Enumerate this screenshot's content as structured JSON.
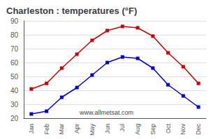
{
  "chart_data": {
    "type": "line",
    "title": "Charleston : temperatures (°F)",
    "categories": [
      "Jan",
      "Feb",
      "Mar",
      "Apr",
      "May",
      "Jun",
      "Jul",
      "Aug",
      "Sep",
      "Oct",
      "Nov",
      "Dec"
    ],
    "series": [
      {
        "color": "#cc0000",
        "values": [
          41,
          45,
          56,
          66,
          76,
          83,
          86,
          85,
          79,
          67,
          57,
          45
        ]
      },
      {
        "color": "#0000cc",
        "values": [
          23,
          25,
          35,
          42,
          51,
          60,
          64,
          63,
          56,
          44,
          36,
          28
        ]
      }
    ],
    "marker": "square",
    "ylim": [
      20,
      90
    ],
    "yticks": [
      20,
      30,
      40,
      50,
      60,
      70,
      80,
      90
    ],
    "grid": true,
    "annotations": [
      "www.allmetsat.com"
    ]
  }
}
